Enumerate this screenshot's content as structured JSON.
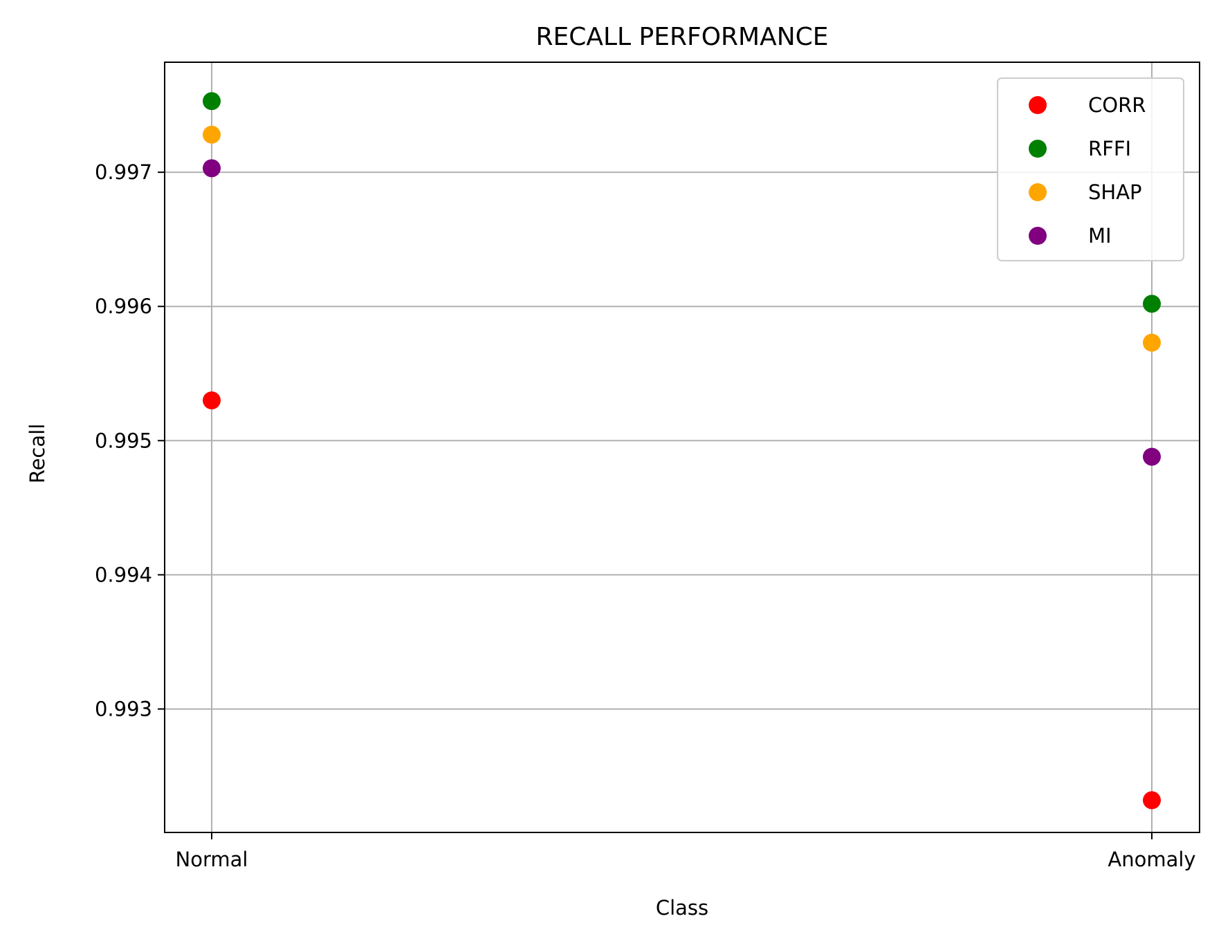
{
  "chart_data": {
    "type": "scatter",
    "title": "RECALL PERFORMANCE",
    "xlabel": "Class",
    "ylabel": "Recall",
    "categories": [
      "Normal",
      "Anomaly"
    ],
    "ylim": [
      0.99208,
      0.99782
    ],
    "yticks": [
      "0.993",
      "0.994",
      "0.995",
      "0.996",
      "0.997"
    ],
    "ytick_values": [
      0.993,
      0.994,
      0.995,
      0.996,
      0.997
    ],
    "grid": true,
    "legend_position": "top-right",
    "series": [
      {
        "name": "CORR",
        "color": "#ff0000",
        "values": [
          0.9953,
          0.99232
        ]
      },
      {
        "name": "RFFI",
        "color": "#008000",
        "values": [
          0.99753,
          0.99602
        ]
      },
      {
        "name": "SHAP",
        "color": "#ffa500",
        "values": [
          0.99728,
          0.99573
        ]
      },
      {
        "name": "MI",
        "color": "#800080",
        "values": [
          0.99703,
          0.99488
        ]
      }
    ]
  }
}
